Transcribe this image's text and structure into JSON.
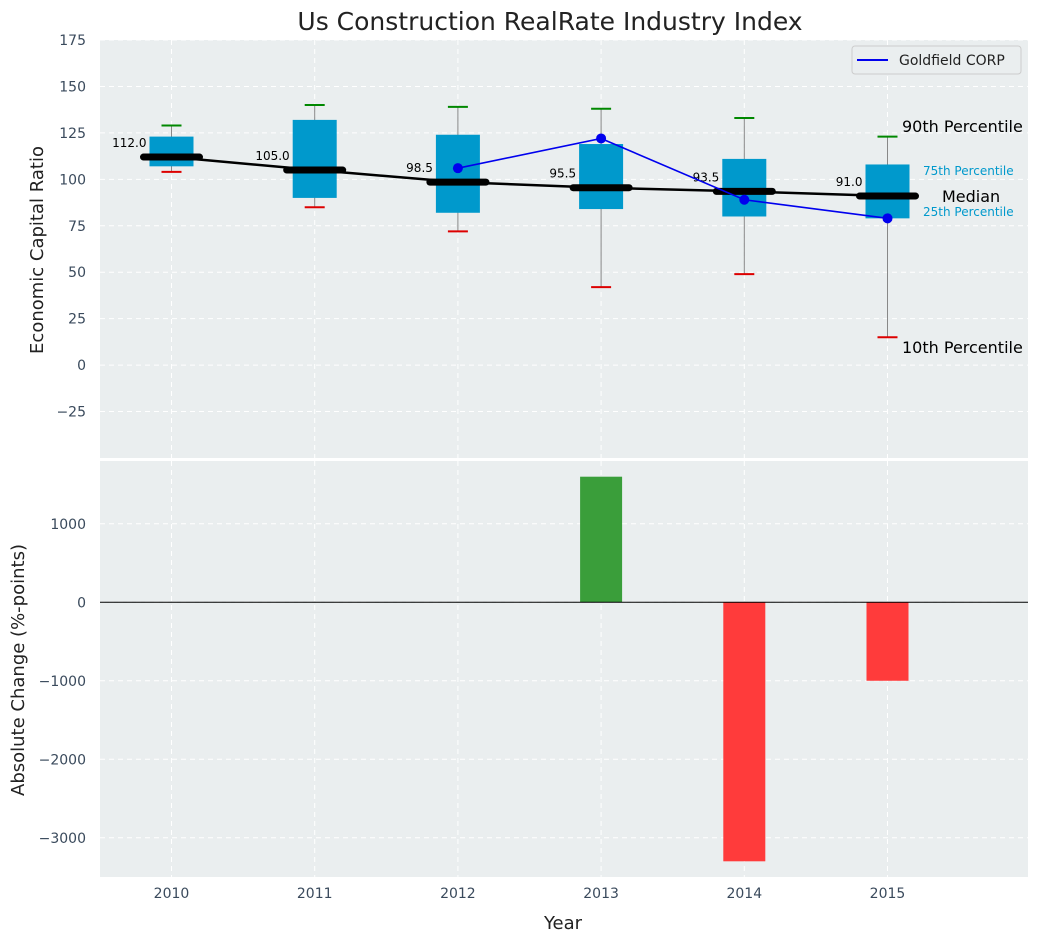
{
  "chart_data": {
    "title": "Us Construction RealRate Industry Index",
    "xlabel": "Year",
    "years": [
      "2010",
      "2011",
      "2012",
      "2013",
      "2014",
      "2015"
    ],
    "top": {
      "type": "box",
      "ylabel": "Economic Capital Ratio",
      "ylim": [
        -50,
        175
      ],
      "yticks": [
        "175",
        "150",
        "125",
        "100",
        "75",
        "50",
        "25",
        "0",
        "−25"
      ],
      "ytick_values": [
        175,
        150,
        125,
        100,
        75,
        50,
        25,
        0,
        -25
      ],
      "boxes": [
        {
          "year": "2010",
          "p10": 104,
          "p25": 107,
          "median": 112.0,
          "p75": 123,
          "p90": 129,
          "median_label": "112.0"
        },
        {
          "year": "2011",
          "p10": 85,
          "p25": 90,
          "median": 105.0,
          "p75": 132,
          "p90": 140,
          "median_label": "105.0"
        },
        {
          "year": "2012",
          "p10": 72,
          "p25": 82,
          "median": 98.5,
          "p75": 124,
          "p90": 139,
          "median_label": "98.5"
        },
        {
          "year": "2013",
          "p10": 42,
          "p25": 84,
          "median": 95.5,
          "p75": 119,
          "p90": 138,
          "median_label": "95.5"
        },
        {
          "year": "2014",
          "p10": 49,
          "p25": 80,
          "median": 93.5,
          "p75": 111,
          "p90": 133,
          "median_label": "93.5"
        },
        {
          "year": "2015",
          "p10": 15,
          "p25": 79,
          "median": 91.0,
          "p75": 108,
          "p90": 123,
          "median_label": "91.0"
        }
      ],
      "company_series": {
        "name": "Goldfield CORP",
        "color": "#0000ee",
        "points": [
          {
            "year": "2012",
            "value": 106
          },
          {
            "year": "2013",
            "value": 122
          },
          {
            "year": "2014",
            "value": 89
          },
          {
            "year": "2015",
            "value": 79
          }
        ]
      },
      "annotations": {
        "p90": "90th Percentile",
        "p75": "75th Percentile",
        "median": "Median",
        "p25": "25th Percentile",
        "p10": "10th Percentile"
      },
      "legend": {
        "label": "Goldfield CORP",
        "placement": "top-right"
      }
    },
    "bottom": {
      "type": "bar",
      "ylabel": "Absolute Change (%-points)",
      "ylim": [
        -3500,
        1800
      ],
      "yticks": [
        "1000",
        "0",
        "−1000",
        "−2000",
        "−3000"
      ],
      "ytick_values": [
        1000,
        0,
        -1000,
        -2000,
        -3000
      ],
      "bars": [
        {
          "year": "2013",
          "value": 1600,
          "color": "#3a9e3a"
        },
        {
          "year": "2014",
          "value": -3300,
          "color": "#ff3b3b"
        },
        {
          "year": "2015",
          "value": -1000,
          "color": "#ff3b3b"
        }
      ]
    },
    "colors": {
      "box_fill": "#0099cc",
      "whisker_top": "#008800",
      "whisker_bottom": "#dd0000",
      "median_line": "#000000",
      "panel_bg": "#eaeeef",
      "grid": "#ffffff"
    }
  }
}
